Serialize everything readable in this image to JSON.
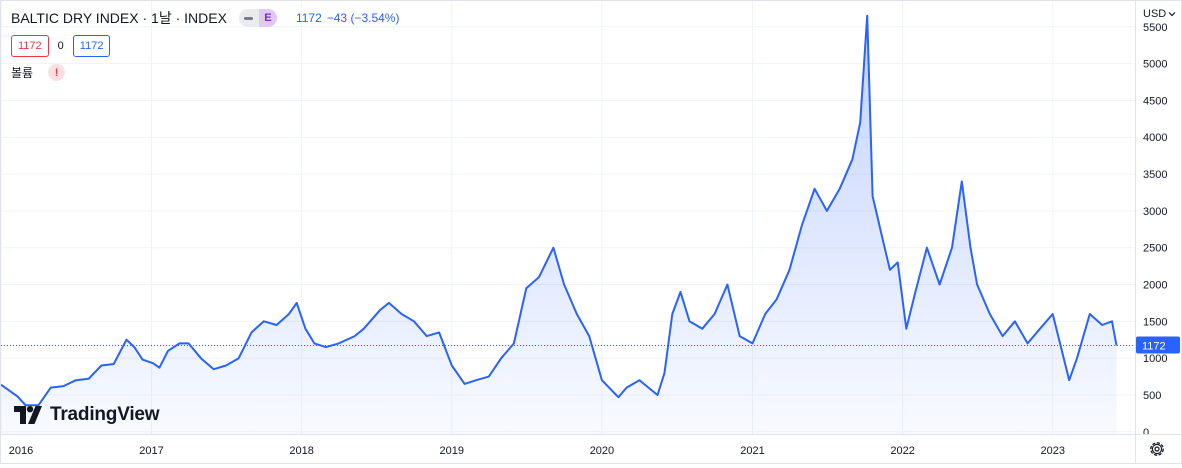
{
  "legend": {
    "title": "BALTIC DRY INDEX · 1날 · INDEX",
    "badge_letter": "E",
    "last_price": "1172",
    "change": "−43 (−3.54%)"
  },
  "quotes": {
    "bid": "1172",
    "spread": "0",
    "ask": "1172"
  },
  "volume": {
    "label": "볼륨",
    "warning": "!"
  },
  "price_scale": {
    "currency": "USD"
  },
  "last_price_label": "1172",
  "branding": {
    "name": "TradingView"
  },
  "icons": [
    "tradingview-logo-icon",
    "warning-icon",
    "settings-gear-icon",
    "chevron-down-icon"
  ],
  "colors": {
    "line": "#2962ff",
    "fill": "#2962ff",
    "bid": "#f23645",
    "ask": "#2962ff",
    "grid": "#f0f3fa"
  },
  "chart_data": {
    "type": "area",
    "series": [
      {
        "x": [
          "2016-01-01",
          "2016-02-10",
          "2016-03-01",
          "2016-04-01",
          "2016-05-01",
          "2016-06-01",
          "2016-07-01",
          "2016-08-01",
          "2016-09-01",
          "2016-10-01",
          "2016-11-01",
          "2016-11-20",
          "2016-12-10",
          "2017-01-05",
          "2017-01-20",
          "2017-02-10",
          "2017-03-10",
          "2017-04-01",
          "2017-05-01",
          "2017-06-01",
          "2017-07-01",
          "2017-08-01",
          "2017-09-01",
          "2017-10-01",
          "2017-11-01",
          "2017-12-01",
          "2017-12-20",
          "2018-01-10",
          "2018-02-01",
          "2018-03-01",
          "2018-04-01",
          "2018-05-10",
          "2018-06-01",
          "2018-07-10",
          "2018-08-01",
          "2018-09-01",
          "2018-10-01",
          "2018-11-01",
          "2018-12-01",
          "2019-01-01",
          "2019-02-01",
          "2019-03-01",
          "2019-04-01",
          "2019-05-01",
          "2019-06-01",
          "2019-07-01",
          "2019-08-01",
          "2019-09-05",
          "2019-10-01",
          "2019-11-01",
          "2019-12-01",
          "2020-01-01",
          "2020-02-10",
          "2020-03-01",
          "2020-04-01",
          "2020-05-15",
          "2020-06-01",
          "2020-06-20",
          "2020-07-10",
          "2020-08-01",
          "2020-09-01",
          "2020-10-01",
          "2020-11-01",
          "2020-12-01",
          "2021-01-01",
          "2021-02-01",
          "2021-03-01",
          "2021-04-01",
          "2021-05-01",
          "2021-06-01",
          "2021-07-01",
          "2021-08-01",
          "2021-09-01",
          "2021-09-20",
          "2021-10-07",
          "2021-10-20",
          "2021-11-10",
          "2021-12-01",
          "2021-12-20",
          "2022-01-10",
          "2022-02-01",
          "2022-03-01",
          "2022-04-01",
          "2022-05-01",
          "2022-05-25",
          "2022-06-15",
          "2022-07-01",
          "2022-08-01",
          "2022-09-01",
          "2022-10-01",
          "2022-11-01",
          "2022-12-01",
          "2023-01-01",
          "2023-02-10",
          "2023-03-01",
          "2023-04-01",
          "2023-05-01",
          "2023-05-25",
          "2023-06-05"
        ],
        "values": [
          640,
          480,
          360,
          360,
          600,
          620,
          700,
          720,
          900,
          920,
          1250,
          1150,
          980,
          930,
          870,
          1100,
          1200,
          1200,
          1000,
          850,
          900,
          1000,
          1350,
          1500,
          1450,
          1600,
          1750,
          1400,
          1200,
          1150,
          1200,
          1300,
          1400,
          1650,
          1750,
          1600,
          1500,
          1300,
          1350,
          900,
          650,
          700,
          750,
          1000,
          1200,
          1950,
          2100,
          2500,
          2000,
          1600,
          1300,
          700,
          470,
          600,
          700,
          500,
          800,
          1600,
          1900,
          1500,
          1400,
          1600,
          2000,
          1300,
          1200,
          1600,
          1800,
          2200,
          2800,
          3300,
          3000,
          3300,
          3700,
          4200,
          5650,
          3200,
          2700,
          2200,
          2300,
          1400,
          1900,
          2500,
          2000,
          2500,
          3400,
          2500,
          2000,
          1600,
          1300,
          1500,
          1200,
          1400,
          1600,
          700,
          1000,
          1600,
          1450,
          1500,
          1172
        ]
      }
    ],
    "xticks": [
      "2016",
      "2017",
      "2018",
      "2019",
      "2020",
      "2021",
      "2022",
      "2023"
    ],
    "yticks": [
      0,
      500,
      1000,
      1500,
      2000,
      2500,
      3000,
      3500,
      4000,
      4500,
      5000,
      5500
    ],
    "ylim": [
      -30,
      5850
    ],
    "xlim": [
      "2016-01-01",
      "2023-07-20"
    ],
    "last_value": 1172,
    "grid": true
  }
}
